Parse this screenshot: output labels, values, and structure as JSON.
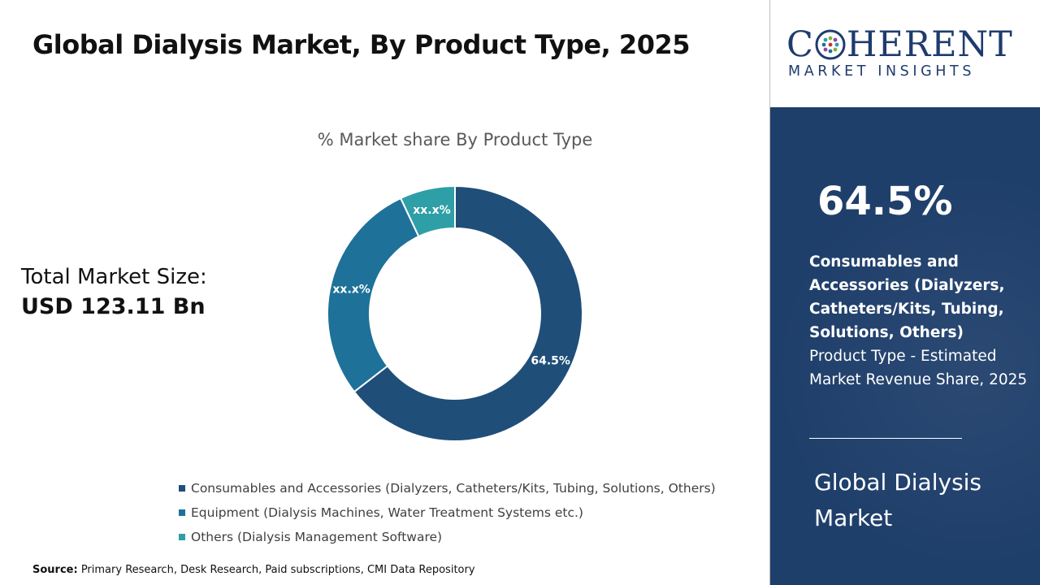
{
  "header": {
    "title": "Global Dialysis Market, By Product Type, 2025"
  },
  "market_size": {
    "label": "Total Market Size:",
    "value": "USD 123.11 Bn"
  },
  "chart_data": {
    "type": "pie",
    "variant": "donut",
    "title": "% Market share By Product Type",
    "slices": [
      {
        "name": "Consumables and Accessories (Dialyzers, Catheters/Kits, Tubing, Solutions, Others)",
        "value": 64.5,
        "label": "64.5%",
        "color": "#1f4e79"
      },
      {
        "name": "Equipment (Dialysis Machines, Water Treatment Systems etc.)",
        "value": 28.5,
        "label": "xx.x%",
        "color": "#1e7199"
      },
      {
        "name": "Others (Dialysis Management Software)",
        "value": 7.0,
        "label": "xx.x%",
        "color": "#2e9fa6"
      }
    ],
    "legend_position": "bottom"
  },
  "source": {
    "label": "Source:",
    "text": " Primary Research, Desk Research, Paid subscriptions, CMI Data Repository"
  },
  "logo": {
    "letter_c": "C",
    "letters_rest": "HERENT",
    "tagline": "MARKET INSIGHTS"
  },
  "panel": {
    "highlight_value": "64.5%",
    "segment_name": "Consumables and Accessories (Dialyzers, Catheters/Kits, Tubing, Solutions, Others)",
    "description": "Product Type - Estimated Market Revenue Share, 2025",
    "market_name": "Global Dialysis Market"
  },
  "colors": {
    "panel_bg": "#1f3f6b",
    "brand": "#1f3b6e"
  }
}
